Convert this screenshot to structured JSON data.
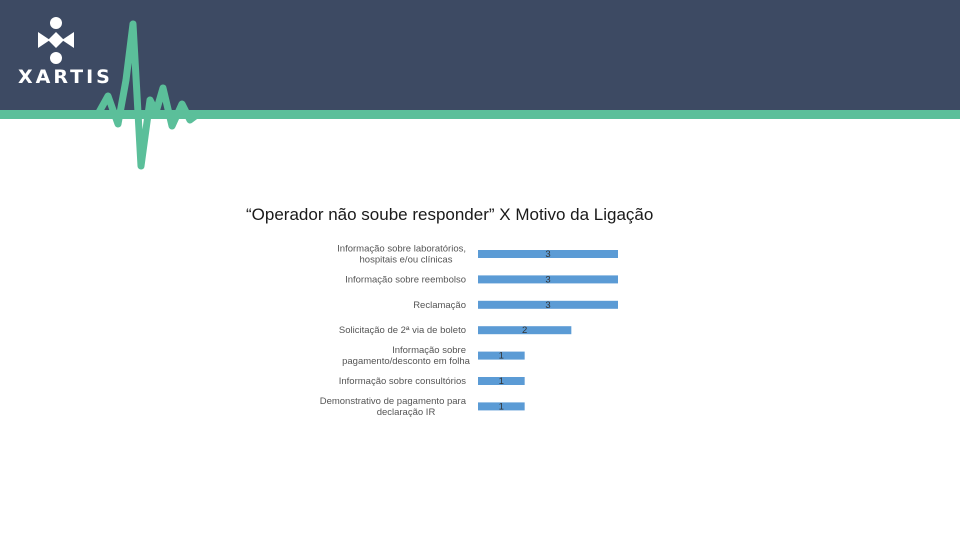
{
  "brand": {
    "name": "XARTIS",
    "colors": {
      "header": "#3d4a63",
      "accent": "#5bbf9a",
      "bar": "#5b9bd5"
    }
  },
  "slide": {
    "title": "“Operador não soube responder” X Motivo da Ligação"
  },
  "chart_data": {
    "type": "bar",
    "orientation": "horizontal",
    "title": "",
    "categories": [
      "Informação sobre laboratórios, hospitais e/ou clínicas",
      "Informação sobre reembolso",
      "Reclamação",
      "Solicitação de 2ª via de boleto",
      "Informação sobre pagamento/desconto em folha",
      "Informação sobre consultórios",
      "Demonstrativo de pagamento para declaração IR"
    ],
    "values": [
      3,
      3,
      3,
      2,
      1,
      1,
      1
    ],
    "xlim": [
      0,
      3
    ],
    "grid": false,
    "data_labels": true
  }
}
